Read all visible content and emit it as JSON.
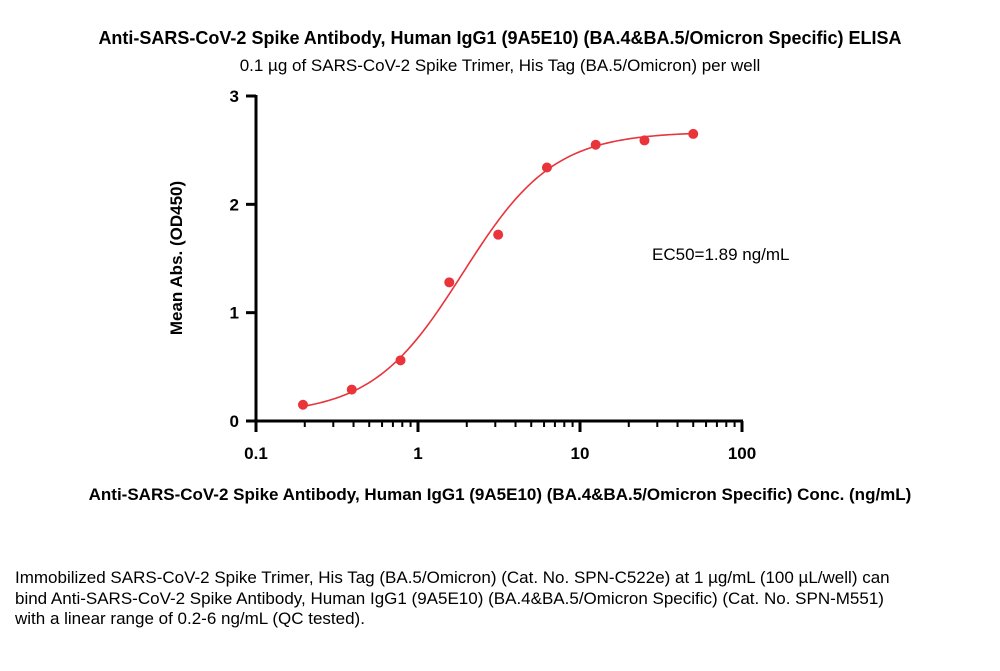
{
  "chart_data": {
    "type": "scatter",
    "title": "Anti-SARS-CoV-2 Spike Antibody, Human IgG1 (9A5E10) (BA.4&BA.5/Omicron Specific) ELISA",
    "subtitle": "0.1 µg of SARS-CoV-2 Spike Trimer, His Tag (BA.5/Omicron) per well",
    "xlabel": "Anti-SARS-CoV-2 Spike Antibody, Human IgG1 (9A5E10) (BA.4&BA.5/Omicron Specific) Conc. (ng/mL)",
    "ylabel": "Mean Abs. (OD450)",
    "x_scale": "log",
    "xlim": [
      0.1,
      100
    ],
    "ylim": [
      0,
      3
    ],
    "x_ticks": [
      "0.1",
      "1",
      "10",
      "100"
    ],
    "y_ticks": [
      "0",
      "1",
      "2",
      "3"
    ],
    "grid": false,
    "series": [
      {
        "color": "#e8343a",
        "x": [
          0.195,
          0.39,
          0.78,
          1.56,
          3.125,
          6.25,
          12.5,
          25,
          50
        ],
        "y": [
          0.15,
          0.29,
          0.56,
          1.28,
          1.72,
          2.34,
          2.55,
          2.59,
          2.65
        ]
      }
    ],
    "fit": {
      "bottom": 0.06,
      "top": 2.67,
      "ec50": 1.89,
      "hill": 1.55,
      "color": "#e8343a"
    },
    "annotation": "EC50=1.89 ng/mL"
  },
  "caption": "Immobilized SARS-CoV-2 Spike Trimer, His Tag (BA.5/Omicron) (Cat. No. SPN-C522e) at 1 µg/mL (100 µL/well) can bind Anti-SARS-CoV-2 Spike Antibody, Human IgG1 (9A5E10) (BA.4&BA.5/Omicron Specific) (Cat. No. SPN-M551) with a linear range of 0.2-6 ng/mL (QC tested)."
}
